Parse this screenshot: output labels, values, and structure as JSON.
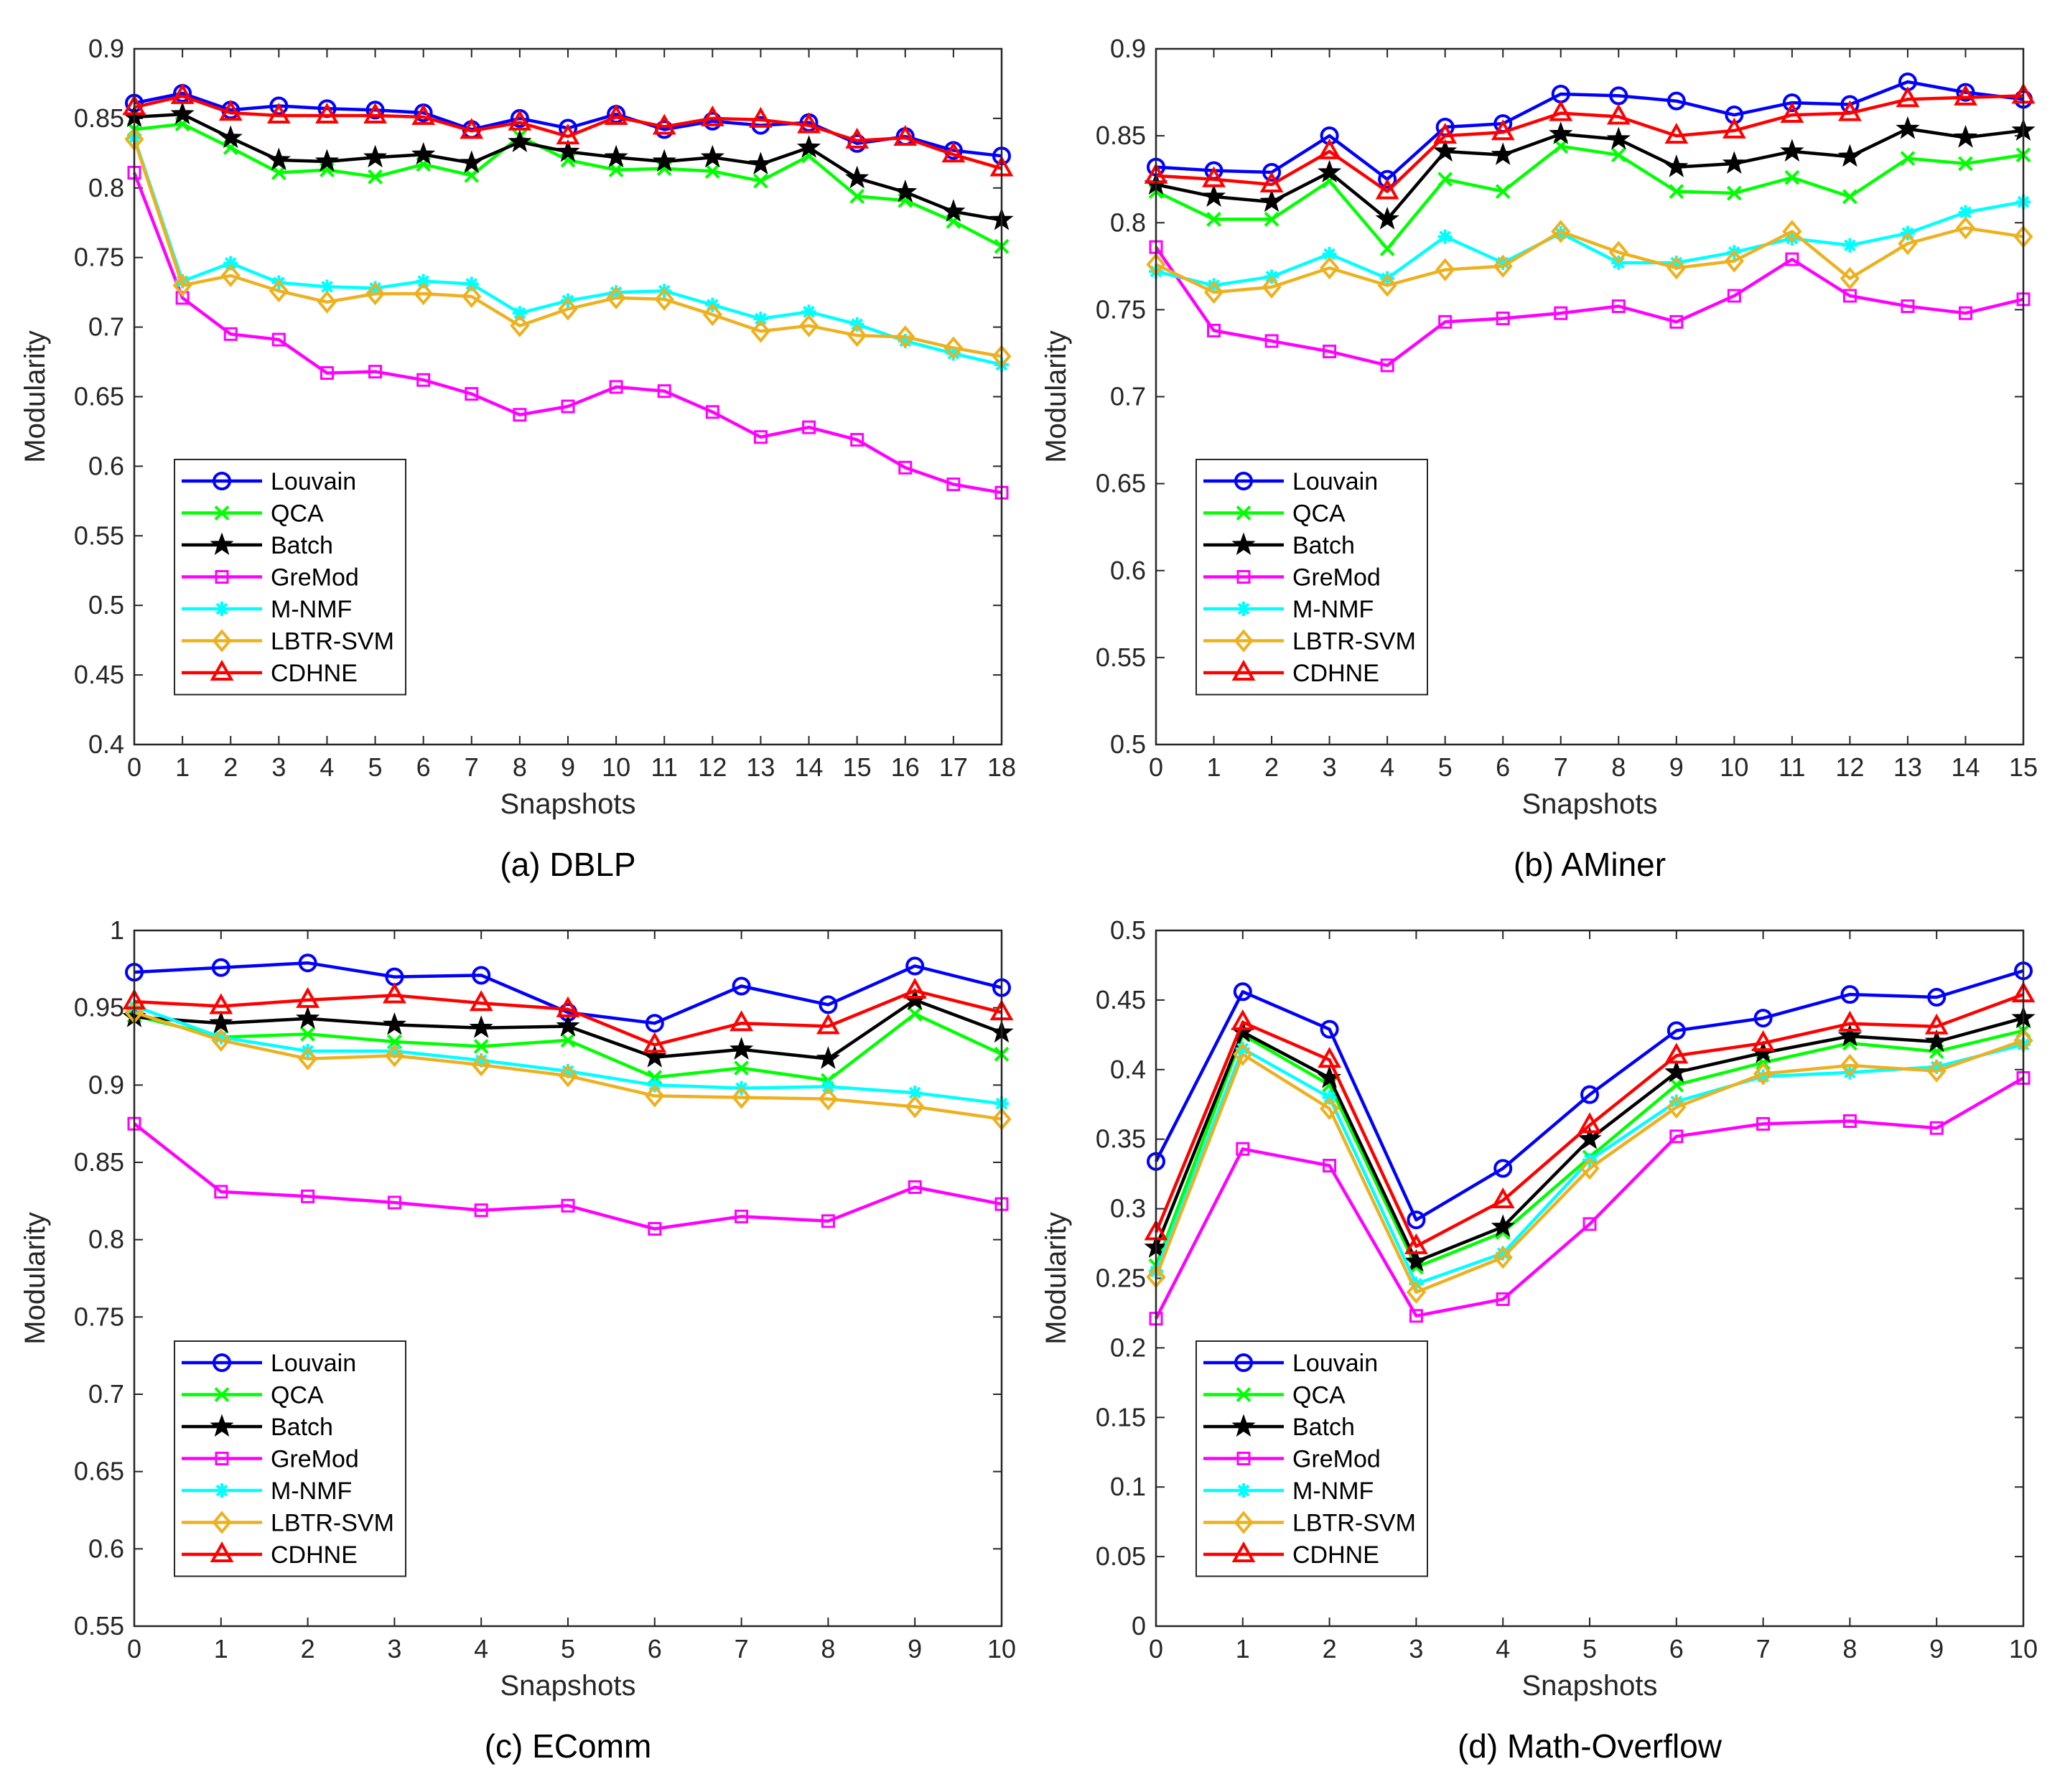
{
  "colors": {
    "Louvain": "#0000ff",
    "QCA": "#00ff00",
    "Batch": "#000000",
    "GreMod": "#ff00ff",
    "M-NMF": "#00ffff",
    "LBTR-SVM": "#edb120",
    "CDHNE": "#ff0000"
  },
  "markers": {
    "Louvain": "circle",
    "QCA": "x",
    "Batch": "star",
    "GreMod": "square",
    "M-NMF": "asterisk",
    "LBTR-SVM": "diamond",
    "CDHNE": "triangle"
  },
  "chart_data": [
    {
      "type": "line",
      "caption": "(a) DBLP",
      "xlabel": "Snapshots",
      "ylabel": "Modularity",
      "xlim": [
        0,
        18
      ],
      "ylim": [
        0.4,
        0.9
      ],
      "xticks": [
        0,
        1,
        2,
        3,
        4,
        5,
        6,
        7,
        8,
        9,
        10,
        11,
        12,
        13,
        14,
        15,
        16,
        17,
        18
      ],
      "yticks": [
        0.4,
        0.45,
        0.5,
        0.55,
        0.6,
        0.65,
        0.7,
        0.75,
        0.8,
        0.85,
        0.9
      ],
      "ytick_labels": [
        "0.4",
        "0.45",
        "0.5",
        "0.55",
        "0.6",
        "0.65",
        "0.7",
        "0.75",
        "0.8",
        "0.85",
        "0.9"
      ],
      "legend_position": "bottom-left",
      "x": [
        0,
        1,
        2,
        3,
        4,
        5,
        6,
        7,
        8,
        9,
        10,
        11,
        12,
        13,
        14,
        15,
        16,
        17,
        18
      ],
      "series": [
        {
          "name": "Louvain",
          "values": [
            0.861,
            0.868,
            0.856,
            0.859,
            0.857,
            0.856,
            0.854,
            0.842,
            0.85,
            0.843,
            0.853,
            0.842,
            0.848,
            0.845,
            0.847,
            0.832,
            0.837,
            0.827,
            0.823
          ]
        },
        {
          "name": "QCA",
          "values": [
            0.842,
            0.846,
            0.829,
            0.811,
            0.813,
            0.808,
            0.817,
            0.809,
            0.837,
            0.82,
            0.813,
            0.814,
            0.812,
            0.805,
            0.823,
            0.794,
            0.791,
            0.776,
            0.758
          ]
        },
        {
          "name": "Batch",
          "values": [
            0.851,
            0.853,
            0.836,
            0.82,
            0.819,
            0.822,
            0.824,
            0.818,
            0.833,
            0.826,
            0.822,
            0.819,
            0.822,
            0.817,
            0.829,
            0.807,
            0.797,
            0.783,
            0.777
          ]
        },
        {
          "name": "GreMod",
          "values": [
            0.811,
            0.721,
            0.695,
            0.691,
            0.667,
            0.668,
            0.662,
            0.652,
            0.637,
            0.643,
            0.657,
            0.654,
            0.639,
            0.621,
            0.628,
            0.619,
            0.599,
            0.587,
            0.581
          ]
        },
        {
          "name": "M-NMF",
          "values": [
            0.836,
            0.733,
            0.746,
            0.732,
            0.729,
            0.728,
            0.733,
            0.731,
            0.71,
            0.719,
            0.725,
            0.726,
            0.716,
            0.706,
            0.711,
            0.702,
            0.69,
            0.681,
            0.673
          ]
        },
        {
          "name": "LBTR-SVM",
          "values": [
            0.835,
            0.73,
            0.737,
            0.726,
            0.718,
            0.724,
            0.724,
            0.722,
            0.701,
            0.713,
            0.721,
            0.72,
            0.709,
            0.697,
            0.701,
            0.694,
            0.693,
            0.685,
            0.679
          ]
        },
        {
          "name": "CDHNE",
          "values": [
            0.858,
            0.866,
            0.854,
            0.852,
            0.852,
            0.852,
            0.851,
            0.841,
            0.847,
            0.837,
            0.851,
            0.844,
            0.85,
            0.849,
            0.845,
            0.834,
            0.836,
            0.824,
            0.814
          ]
        }
      ]
    },
    {
      "type": "line",
      "caption": "(b) AMiner",
      "xlabel": "Snapshots",
      "ylabel": "Modularity",
      "xlim": [
        0,
        15
      ],
      "ylim": [
        0.5,
        0.9
      ],
      "xticks": [
        0,
        1,
        2,
        3,
        4,
        5,
        6,
        7,
        8,
        9,
        10,
        11,
        12,
        13,
        14,
        15
      ],
      "yticks": [
        0.5,
        0.55,
        0.6,
        0.65,
        0.7,
        0.75,
        0.8,
        0.85,
        0.9
      ],
      "ytick_labels": [
        "0.5",
        "0.55",
        "0.6",
        "0.65",
        "0.7",
        "0.75",
        "0.8",
        "0.85",
        "0.9"
      ],
      "legend_position": "bottom-left",
      "x": [
        0,
        1,
        2,
        3,
        4,
        5,
        6,
        7,
        8,
        9,
        10,
        11,
        12,
        13,
        14,
        15
      ],
      "series": [
        {
          "name": "Louvain",
          "values": [
            0.832,
            0.83,
            0.829,
            0.85,
            0.825,
            0.855,
            0.857,
            0.874,
            0.873,
            0.87,
            0.862,
            0.869,
            0.868,
            0.881,
            0.875,
            0.871
          ]
        },
        {
          "name": "QCA",
          "values": [
            0.818,
            0.802,
            0.802,
            0.824,
            0.785,
            0.825,
            0.818,
            0.844,
            0.839,
            0.818,
            0.817,
            0.826,
            0.815,
            0.837,
            0.834,
            0.839
          ]
        },
        {
          "name": "Batch",
          "values": [
            0.822,
            0.815,
            0.812,
            0.829,
            0.802,
            0.841,
            0.839,
            0.851,
            0.848,
            0.832,
            0.834,
            0.841,
            0.838,
            0.854,
            0.849,
            0.853
          ]
        },
        {
          "name": "GreMod",
          "values": [
            0.786,
            0.738,
            0.732,
            0.726,
            0.718,
            0.743,
            0.745,
            0.748,
            0.752,
            0.743,
            0.758,
            0.779,
            0.758,
            0.752,
            0.748,
            0.756
          ]
        },
        {
          "name": "M-NMF",
          "values": [
            0.772,
            0.764,
            0.769,
            0.782,
            0.768,
            0.792,
            0.777,
            0.794,
            0.777,
            0.777,
            0.783,
            0.791,
            0.787,
            0.794,
            0.806,
            0.812
          ]
        },
        {
          "name": "LBTR-SVM",
          "values": [
            0.776,
            0.76,
            0.763,
            0.774,
            0.764,
            0.773,
            0.775,
            0.795,
            0.783,
            0.774,
            0.778,
            0.795,
            0.768,
            0.788,
            0.797,
            0.792
          ]
        },
        {
          "name": "CDHNE",
          "values": [
            0.827,
            0.825,
            0.822,
            0.841,
            0.818,
            0.85,
            0.852,
            0.863,
            0.861,
            0.85,
            0.853,
            0.862,
            0.863,
            0.871,
            0.872,
            0.873
          ]
        }
      ]
    },
    {
      "type": "line",
      "caption": "(c) EComm",
      "xlabel": "Snapshots",
      "ylabel": "Modularity",
      "xlim": [
        0,
        10
      ],
      "ylim": [
        0.55,
        1
      ],
      "xticks": [
        0,
        1,
        2,
        3,
        4,
        5,
        6,
        7,
        8,
        9,
        10
      ],
      "yticks": [
        0.55,
        0.6,
        0.65,
        0.7,
        0.75,
        0.8,
        0.85,
        0.9,
        0.95,
        1
      ],
      "ytick_labels": [
        "0.55",
        "0.6",
        "0.65",
        "0.7",
        "0.75",
        "0.8",
        "0.85",
        "0.9",
        "0.95",
        "1"
      ],
      "legend_position": "bottom-left",
      "x": [
        0,
        1,
        2,
        3,
        4,
        5,
        6,
        7,
        8,
        9,
        10
      ],
      "series": [
        {
          "name": "Louvain",
          "values": [
            0.973,
            0.976,
            0.979,
            0.97,
            0.971,
            0.947,
            0.94,
            0.964,
            0.952,
            0.977,
            0.963
          ]
        },
        {
          "name": "QCA",
          "values": [
            0.945,
            0.931,
            0.933,
            0.928,
            0.925,
            0.929,
            0.905,
            0.911,
            0.903,
            0.946,
            0.92
          ]
        },
        {
          "name": "Batch",
          "values": [
            0.944,
            0.94,
            0.943,
            0.939,
            0.937,
            0.938,
            0.918,
            0.923,
            0.917,
            0.955,
            0.934
          ]
        },
        {
          "name": "GreMod",
          "values": [
            0.875,
            0.831,
            0.828,
            0.824,
            0.819,
            0.822,
            0.807,
            0.815,
            0.812,
            0.834,
            0.823
          ]
        },
        {
          "name": "M-NMF",
          "values": [
            0.951,
            0.931,
            0.922,
            0.922,
            0.916,
            0.909,
            0.9,
            0.898,
            0.899,
            0.895,
            0.888
          ]
        },
        {
          "name": "LBTR-SVM",
          "values": [
            0.947,
            0.929,
            0.917,
            0.919,
            0.913,
            0.906,
            0.893,
            0.892,
            0.891,
            0.886,
            0.878
          ]
        },
        {
          "name": "CDHNE",
          "values": [
            0.954,
            0.951,
            0.955,
            0.958,
            0.953,
            0.949,
            0.926,
            0.94,
            0.938,
            0.961,
            0.947
          ]
        }
      ]
    },
    {
      "type": "line",
      "caption": "(d) Math-Overflow",
      "xlabel": "Snapshots",
      "ylabel": "Modularity",
      "xlim": [
        0,
        10
      ],
      "ylim": [
        0,
        0.5
      ],
      "xticks": [
        0,
        1,
        2,
        3,
        4,
        5,
        6,
        7,
        8,
        9,
        10
      ],
      "yticks": [
        0,
        0.05,
        0.1,
        0.15,
        0.2,
        0.25,
        0.3,
        0.35,
        0.4,
        0.45,
        0.5
      ],
      "ytick_labels": [
        "0",
        "0.05",
        "0.1",
        "0.15",
        "0.2",
        "0.25",
        "0.3",
        "0.35",
        "0.4",
        "0.45",
        "0.5"
      ],
      "legend_position": "bottom-left",
      "x": [
        0,
        1,
        2,
        3,
        4,
        5,
        6,
        7,
        8,
        9,
        10
      ],
      "series": [
        {
          "name": "Louvain",
          "values": [
            0.334,
            0.456,
            0.429,
            0.292,
            0.329,
            0.382,
            0.428,
            0.437,
            0.454,
            0.452,
            0.471
          ]
        },
        {
          "name": "QCA",
          "values": [
            0.259,
            0.425,
            0.389,
            0.258,
            0.283,
            0.337,
            0.389,
            0.405,
            0.419,
            0.413,
            0.428
          ]
        },
        {
          "name": "Batch",
          "values": [
            0.272,
            0.427,
            0.394,
            0.262,
            0.287,
            0.35,
            0.398,
            0.412,
            0.424,
            0.42,
            0.437
          ]
        },
        {
          "name": "GreMod",
          "values": [
            0.221,
            0.343,
            0.331,
            0.223,
            0.235,
            0.289,
            0.352,
            0.361,
            0.363,
            0.358,
            0.394
          ]
        },
        {
          "name": "M-NMF",
          "values": [
            0.255,
            0.415,
            0.38,
            0.246,
            0.268,
            0.335,
            0.377,
            0.395,
            0.398,
            0.402,
            0.418
          ]
        },
        {
          "name": "LBTR-SVM",
          "values": [
            0.251,
            0.411,
            0.372,
            0.24,
            0.265,
            0.329,
            0.373,
            0.397,
            0.403,
            0.399,
            0.421
          ]
        },
        {
          "name": "CDHNE",
          "values": [
            0.283,
            0.434,
            0.407,
            0.273,
            0.306,
            0.36,
            0.41,
            0.419,
            0.433,
            0.431,
            0.454
          ]
        }
      ]
    }
  ]
}
